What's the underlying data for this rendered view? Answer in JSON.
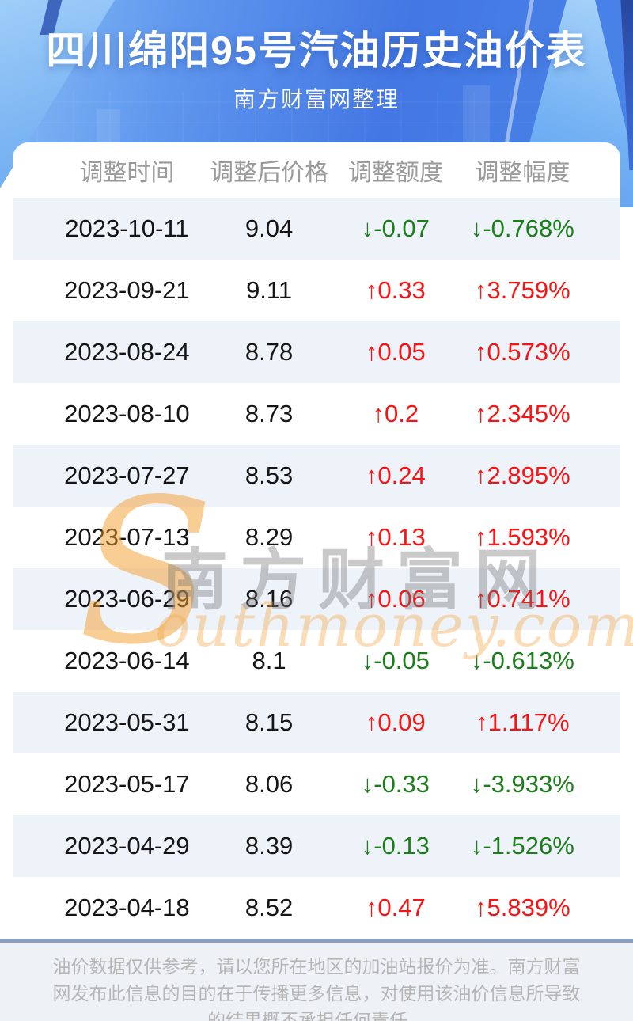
{
  "header": {
    "title": "四川绵阳95号汽油历史油价表",
    "subtitle": "南方财富网整理"
  },
  "table": {
    "columns": [
      "调整时间",
      "调整后价格",
      "调整额度",
      "调整幅度"
    ],
    "rows": [
      {
        "date": "2023-10-11",
        "price": "9.04",
        "change": "↓-0.07",
        "change_pct": "↓-0.768%",
        "direction": "down"
      },
      {
        "date": "2023-09-21",
        "price": "9.11",
        "change": "↑0.33",
        "change_pct": "↑3.759%",
        "direction": "up"
      },
      {
        "date": "2023-08-24",
        "price": "8.78",
        "change": "↑0.05",
        "change_pct": "↑0.573%",
        "direction": "up"
      },
      {
        "date": "2023-08-10",
        "price": "8.73",
        "change": "↑0.2",
        "change_pct": "↑2.345%",
        "direction": "up"
      },
      {
        "date": "2023-07-27",
        "price": "8.53",
        "change": "↑0.24",
        "change_pct": "↑2.895%",
        "direction": "up"
      },
      {
        "date": "2023-07-13",
        "price": "8.29",
        "change": "↑0.13",
        "change_pct": "↑1.593%",
        "direction": "up"
      },
      {
        "date": "2023-06-29",
        "price": "8.16",
        "change": "↑0.06",
        "change_pct": "↑0.741%",
        "direction": "up"
      },
      {
        "date": "2023-06-14",
        "price": "8.1",
        "change": "↓-0.05",
        "change_pct": "↓-0.613%",
        "direction": "down"
      },
      {
        "date": "2023-05-31",
        "price": "8.15",
        "change": "↑0.09",
        "change_pct": "↑1.117%",
        "direction": "up"
      },
      {
        "date": "2023-05-17",
        "price": "8.06",
        "change": "↓-0.33",
        "change_pct": "↓-3.933%",
        "direction": "down"
      },
      {
        "date": "2023-04-29",
        "price": "8.39",
        "change": "↓-0.13",
        "change_pct": "↓-1.526%",
        "direction": "down"
      },
      {
        "date": "2023-04-18",
        "price": "8.52",
        "change": "↑0.47",
        "change_pct": "↑5.839%",
        "direction": "up"
      }
    ]
  },
  "watermark": {
    "swoosh": "S",
    "cn": "南方财富网",
    "en": "outhmoney.com"
  },
  "footer": {
    "disclaimer": "油价数据仅供参考，请以您所在地区的加油站报价为准。南方财富网发布此信息的目的在于传播更多信息，对使用该油价信息所导致的结果概不承担任何责任。"
  },
  "colors": {
    "up": "#f81414",
    "down": "#1b7e1b",
    "stripe": "#eef3fa",
    "accent_blue": "#4377e3",
    "footer_border": "#8aa0bd"
  }
}
